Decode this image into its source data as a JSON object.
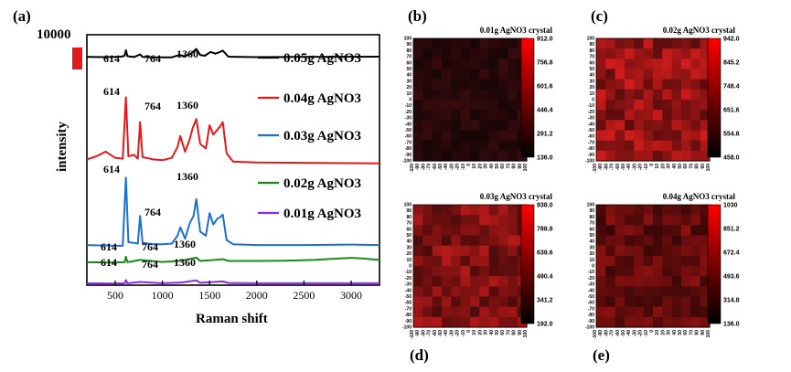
{
  "panels": {
    "a": "(a)",
    "b": "(b)",
    "c": "(c)",
    "d": "(d)",
    "e": "(e)"
  },
  "chart_data": [
    {
      "type": "line",
      "panel": "(a)",
      "xlabel": "Raman shift",
      "ylabel": "intensity",
      "xlim": [
        200,
        3300
      ],
      "xticks": [
        500,
        1000,
        1500,
        2000,
        2500,
        3000
      ],
      "scale_bar_label": "10000",
      "scale_bar_color": "#e31a1c",
      "grid": false,
      "series": [
        {
          "name": "0.05g AgNO3",
          "color": "#000000",
          "peaks": [
            "614",
            "764",
            "1360"
          ],
          "x": [
            200,
            400,
            560,
            600,
            614,
            630,
            700,
            764,
            790,
            900,
            1000,
            1100,
            1180,
            1230,
            1300,
            1360,
            1400,
            1450,
            1510,
            1560,
            1600,
            1640,
            1700,
            2000,
            2500,
            3000,
            3300
          ],
          "y": [
            0.98,
            0.95,
            1.0,
            1.1,
            1.75,
            1.05,
            0.96,
            1.25,
            0.98,
            0.93,
            0.92,
            0.93,
            1.2,
            1.05,
            1.3,
            1.9,
            1.2,
            1.1,
            1.55,
            1.35,
            1.5,
            1.7,
            1.0,
            0.95,
            0.97,
            0.99,
            1.0
          ]
        },
        {
          "name": "0.04g AgNO3",
          "color": "#e31a1c",
          "peaks": [
            "614",
            "764",
            "1360"
          ],
          "x": [
            200,
            300,
            400,
            500,
            580,
            614,
            640,
            700,
            740,
            764,
            790,
            900,
            1000,
            1100,
            1160,
            1190,
            1240,
            1290,
            1320,
            1360,
            1400,
            1460,
            1500,
            1540,
            1580,
            1610,
            1640,
            1680,
            1750,
            2000,
            2500,
            3000,
            3300
          ],
          "y": [
            0.8,
            1.0,
            1.3,
            0.9,
            0.85,
            4.8,
            1.0,
            1.1,
            0.85,
            3.2,
            0.95,
            0.8,
            0.75,
            0.9,
            1.6,
            2.3,
            1.3,
            2.1,
            2.8,
            3.4,
            1.8,
            1.5,
            3.0,
            2.4,
            2.7,
            2.9,
            3.2,
            1.2,
            0.65,
            0.6,
            0.58,
            0.56,
            0.55
          ]
        },
        {
          "name": "0.03g AgNO3",
          "color": "#1f6fd1",
          "peaks": [
            "614",
            "764",
            "1360"
          ],
          "x": [
            200,
            500,
            580,
            614,
            640,
            700,
            740,
            764,
            790,
            900,
            1000,
            1100,
            1160,
            1190,
            1240,
            1290,
            1330,
            1360,
            1400,
            1460,
            1500,
            1540,
            1580,
            1610,
            1640,
            1680,
            1750,
            2000,
            2500,
            3000,
            3300
          ],
          "y": [
            0.35,
            0.3,
            0.3,
            5.1,
            0.55,
            0.5,
            0.45,
            2.4,
            0.5,
            0.4,
            0.4,
            0.45,
            1.0,
            1.6,
            0.8,
            1.9,
            2.4,
            3.6,
            1.3,
            1.0,
            2.6,
            1.8,
            2.2,
            2.3,
            2.5,
            0.7,
            0.4,
            0.35,
            0.35,
            0.38,
            0.35
          ]
        },
        {
          "name": "0.02g AgNO3",
          "color": "#1a8a1a",
          "peaks": [
            "614",
            "764",
            "1360"
          ],
          "x": [
            200,
            500,
            600,
            614,
            630,
            764,
            1000,
            1200,
            1360,
            1400,
            1550,
            1640,
            1700,
            2000,
            2300,
            2600,
            2900,
            3000,
            3100,
            3300
          ],
          "y": [
            0.3,
            0.28,
            0.3,
            0.65,
            0.3,
            0.45,
            0.32,
            0.4,
            0.6,
            0.38,
            0.45,
            0.5,
            0.38,
            0.38,
            0.4,
            0.45,
            0.55,
            0.58,
            0.55,
            0.45
          ]
        },
        {
          "name": "0.01g AgNO3",
          "color": "#8a2be2",
          "peaks": [
            "614",
            "764",
            "1360"
          ],
          "x": [
            200,
            500,
            600,
            614,
            630,
            764,
            1000,
            1200,
            1360,
            1400,
            1550,
            1640,
            1700,
            2000,
            2500,
            3000,
            3300
          ],
          "y": [
            0.3,
            0.28,
            0.3,
            0.5,
            0.3,
            0.38,
            0.3,
            0.35,
            0.48,
            0.33,
            0.38,
            0.42,
            0.32,
            0.3,
            0.3,
            0.3,
            0.3
          ]
        }
      ]
    },
    {
      "type": "heatmap",
      "panel": "(b)",
      "title": "0.01g AgNO3 crystal",
      "axis_range": [
        -100,
        100
      ],
      "colorbar_ticks": [
        "912.0",
        "756.8",
        "601.6",
        "446.4",
        "291.2",
        "136.0"
      ],
      "colormap": [
        "#000000",
        "#ff0000"
      ]
    },
    {
      "type": "heatmap",
      "panel": "(c)",
      "title": "0.02g AgNO3 crystal",
      "axis_range": [
        -100,
        100
      ],
      "colorbar_ticks": [
        "942.0",
        "845.2",
        "748.4",
        "651.6",
        "554.8",
        "458.0"
      ],
      "colormap": [
        "#000000",
        "#ff0000"
      ]
    },
    {
      "type": "heatmap",
      "panel": "(d)",
      "title": "0.03g AgNO3 crystal",
      "axis_range": [
        -100,
        100
      ],
      "colorbar_ticks": [
        "938.0",
        "788.8",
        "639.6",
        "490.4",
        "341.2",
        "192.0"
      ],
      "colormap": [
        "#000000",
        "#ff0000"
      ]
    },
    {
      "type": "heatmap",
      "panel": "(e)",
      "title": "0.04g AgNO3 crystal",
      "axis_range": [
        -100,
        100
      ],
      "colorbar_ticks": [
        "1030",
        "851.2",
        "672.4",
        "493.6",
        "314.8",
        "136.0"
      ],
      "colormap": [
        "#000000",
        "#ff0000"
      ]
    }
  ]
}
